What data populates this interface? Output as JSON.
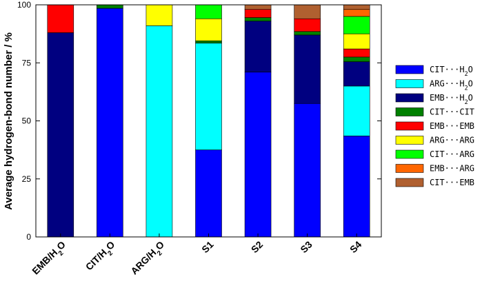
{
  "chart_data": {
    "type": "bar",
    "stacked": true,
    "ylabel": "Average hydrogen-bond number / %",
    "ylim": [
      0,
      100
    ],
    "yticks": [
      0,
      25,
      50,
      75,
      100
    ],
    "grid": false,
    "legend_position": "right",
    "categories": [
      "EMB/H2O",
      "CIT/H2O",
      "ARG/H2O",
      "S1",
      "S2",
      "S3",
      "S4"
    ],
    "category_labels": [
      {
        "main": "EMB/H",
        "sub": "2",
        "tail": "O"
      },
      {
        "main": "CIT/H",
        "sub": "2",
        "tail": "O"
      },
      {
        "main": "ARG/H",
        "sub": "2",
        "tail": "O"
      },
      {
        "main": "S1",
        "sub": "",
        "tail": ""
      },
      {
        "main": "S2",
        "sub": "",
        "tail": ""
      },
      {
        "main": "S3",
        "sub": "",
        "tail": ""
      },
      {
        "main": "S4",
        "sub": "",
        "tail": ""
      }
    ],
    "series": [
      {
        "name": "CIT···H2O",
        "label": {
          "main": "CIT···H",
          "sub": "2",
          "tail": "O"
        },
        "color": "#0000ff",
        "values": [
          0,
          98.5,
          0,
          37.5,
          71,
          57.5,
          43.5
        ]
      },
      {
        "name": "ARG···H2O",
        "label": {
          "main": "ARG···H",
          "sub": "2",
          "tail": "O"
        },
        "color": "#00ffff",
        "values": [
          0,
          0,
          91,
          46,
          0,
          0,
          21.5
        ]
      },
      {
        "name": "EMB···H2O",
        "label": {
          "main": "EMB···H",
          "sub": "2",
          "tail": "O"
        },
        "color": "#000080",
        "values": [
          88,
          0,
          0,
          0,
          22,
          29.5,
          10.5
        ]
      },
      {
        "name": "CIT···CIT",
        "label": {
          "main": "CIT···CIT",
          "sub": "",
          "tail": ""
        },
        "color": "#008000",
        "values": [
          0,
          1.5,
          0,
          1,
          1.5,
          1.5,
          2
        ]
      },
      {
        "name": "EMB···EMB",
        "label": {
          "main": "EMB···EMB",
          "sub": "",
          "tail": ""
        },
        "color": "#ff0000",
        "values": [
          12,
          0,
          0,
          0,
          3.5,
          5.5,
          3.5
        ]
      },
      {
        "name": "ARG···ARG",
        "label": {
          "main": "ARG···ARG",
          "sub": "",
          "tail": ""
        },
        "color": "#ffff00",
        "values": [
          0,
          0,
          9,
          9.5,
          0,
          0,
          6.5
        ]
      },
      {
        "name": "CIT···ARG",
        "label": {
          "main": "CIT···ARG",
          "sub": "",
          "tail": ""
        },
        "color": "#00ff00",
        "values": [
          0,
          0,
          0,
          6,
          0,
          0,
          7.5
        ]
      },
      {
        "name": "EMB···ARG",
        "label": {
          "main": "EMB···ARG",
          "sub": "",
          "tail": ""
        },
        "color": "#ff6600",
        "values": [
          0,
          0,
          0,
          0,
          0,
          0,
          3
        ]
      },
      {
        "name": "CIT···EMB",
        "label": {
          "main": "CIT···EMB",
          "sub": "",
          "tail": ""
        },
        "color": "#b06030",
        "values": [
          0,
          0,
          0,
          0,
          2,
          6,
          2
        ]
      }
    ]
  }
}
